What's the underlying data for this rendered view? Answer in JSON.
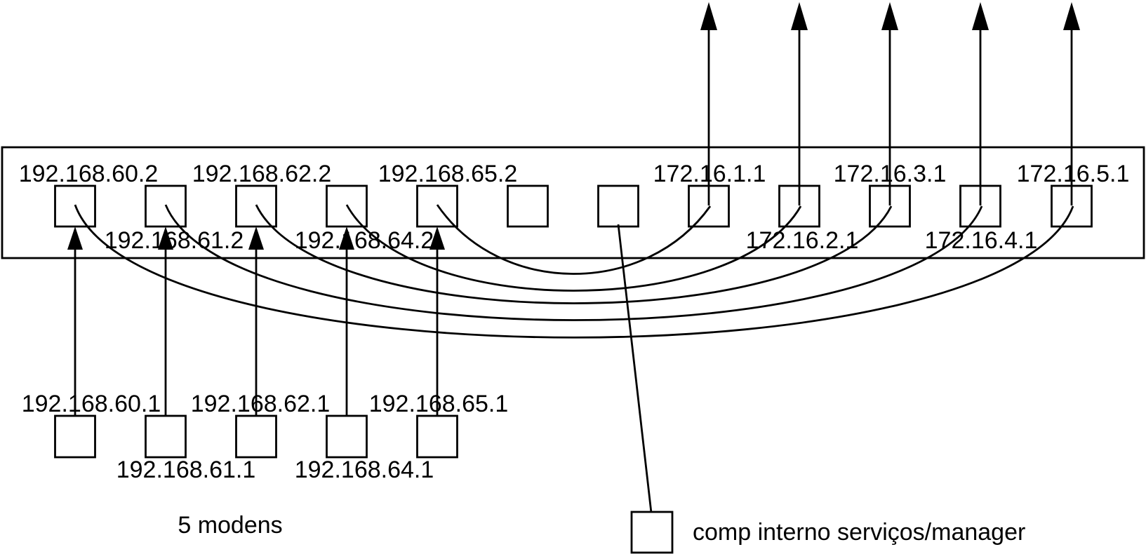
{
  "colors": {
    "ink": "#000000",
    "background": "#ffffff"
  },
  "router": {
    "ports": [
      {
        "id": 1,
        "ip": "192.168.60.2",
        "label_position": "top"
      },
      {
        "id": 2,
        "ip": "192.168.61.2",
        "label_position": "bottom"
      },
      {
        "id": 3,
        "ip": "192.168.62.2",
        "label_position": "top"
      },
      {
        "id": 4,
        "ip": "192.168.64.2",
        "label_position": "bottom"
      },
      {
        "id": 5,
        "ip": "192.168.65.2",
        "label_position": "top"
      },
      {
        "id": 6,
        "ip": "",
        "label_position": "none"
      },
      {
        "id": 7,
        "ip": "",
        "label_position": "none"
      },
      {
        "id": 8,
        "ip": "172.16.1.1",
        "label_position": "top"
      },
      {
        "id": 9,
        "ip": "172.16.2.1",
        "label_position": "bottom"
      },
      {
        "id": 10,
        "ip": "172.16.3.1",
        "label_position": "top"
      },
      {
        "id": 11,
        "ip": "172.16.4.1",
        "label_position": "bottom"
      },
      {
        "id": 12,
        "ip": "172.16.5.1",
        "label_position": "top"
      }
    ],
    "uplink_arrow_ports": [
      8,
      9,
      10,
      11,
      12
    ],
    "nat_mappings": [
      {
        "from": "192.168.65.2",
        "to": "172.16.1.1"
      },
      {
        "from": "192.168.64.2",
        "to": "172.16.2.1"
      },
      {
        "from": "192.168.62.2",
        "to": "172.16.3.1"
      },
      {
        "from": "192.168.61.2",
        "to": "172.16.4.1"
      },
      {
        "from": "192.168.60.2",
        "to": "172.16.5.1"
      }
    ]
  },
  "modems": {
    "caption": "5 modens",
    "devices": [
      {
        "ip": "192.168.60.1",
        "label_position": "top",
        "connects_to_port": 1
      },
      {
        "ip": "192.168.61.1",
        "label_position": "bottom",
        "connects_to_port": 2
      },
      {
        "ip": "192.168.62.1",
        "label_position": "top",
        "connects_to_port": 3
      },
      {
        "ip": "192.168.64.1",
        "label_position": "bottom",
        "connects_to_port": 4
      },
      {
        "ip": "192.168.65.1",
        "label_position": "top",
        "connects_to_port": 5
      }
    ]
  },
  "computer": {
    "label": "comp interno serviços/manager",
    "connects_to_port": 7
  }
}
